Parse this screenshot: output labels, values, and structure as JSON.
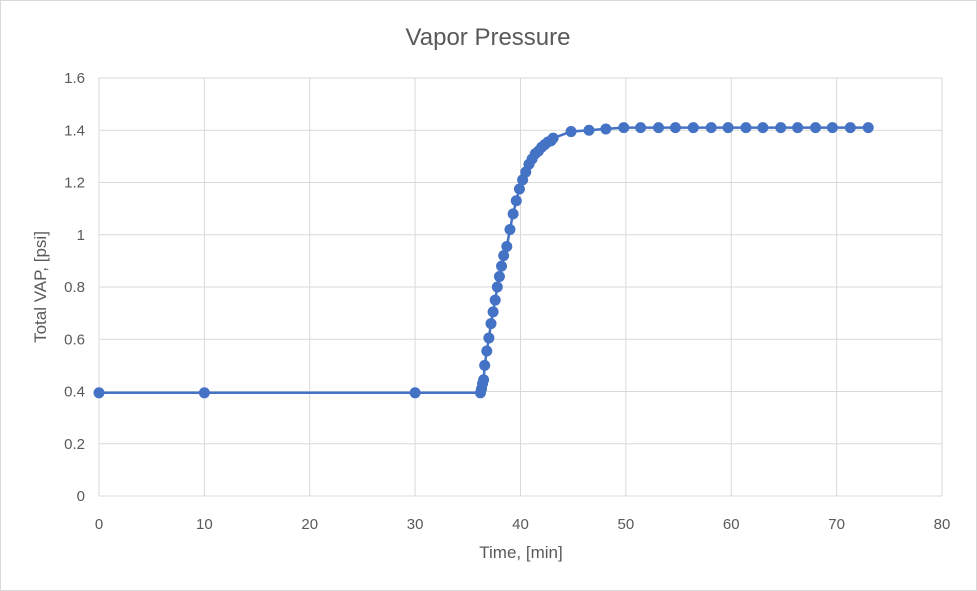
{
  "chart_data": {
    "type": "scatter",
    "title": "Vapor Pressure",
    "xlabel": "Time, [min]",
    "ylabel": "Total VAP, [psi]",
    "xlim": [
      0,
      80
    ],
    "ylim": [
      0,
      1.6
    ],
    "xticks": [
      "0",
      "10",
      "20",
      "30",
      "40",
      "50",
      "60",
      "70",
      "80"
    ],
    "yticks": [
      "0",
      "0.2",
      "0.4",
      "0.6",
      "0.8",
      "1",
      "1.2",
      "1.4",
      "1.6"
    ],
    "grid": true,
    "line_color": "#4472c4",
    "series": [
      {
        "x": [
          0,
          10,
          30,
          36.2,
          36.3,
          36.4,
          36.5,
          36.6,
          36.8,
          37.0,
          37.2,
          37.4,
          37.6,
          37.8,
          38.0,
          38.2,
          38.4,
          38.7,
          39.0,
          39.3,
          39.6,
          39.9,
          40.2,
          40.5,
          40.8,
          41.1,
          41.4,
          41.7,
          42.0,
          42.3,
          42.6,
          42.9,
          43.1,
          44.8,
          46.5,
          48.1,
          49.8,
          51.4,
          53.1,
          54.7,
          56.4,
          58.1,
          59.7,
          61.4,
          63.0,
          64.7,
          66.3,
          68.0,
          69.6,
          71.3,
          73.0
        ],
        "y": [
          0.395,
          0.395,
          0.395,
          0.395,
          0.41,
          0.43,
          0.445,
          0.5,
          0.555,
          0.605,
          0.66,
          0.705,
          0.75,
          0.8,
          0.84,
          0.88,
          0.92,
          0.955,
          1.02,
          1.08,
          1.13,
          1.175,
          1.21,
          1.24,
          1.27,
          1.29,
          1.31,
          1.32,
          1.335,
          1.345,
          1.355,
          1.36,
          1.37,
          1.395,
          1.4,
          1.405,
          1.41,
          1.41,
          1.41,
          1.41,
          1.41,
          1.41,
          1.41,
          1.41,
          1.41,
          1.41,
          1.41,
          1.41,
          1.41,
          1.41,
          1.41
        ]
      }
    ]
  }
}
